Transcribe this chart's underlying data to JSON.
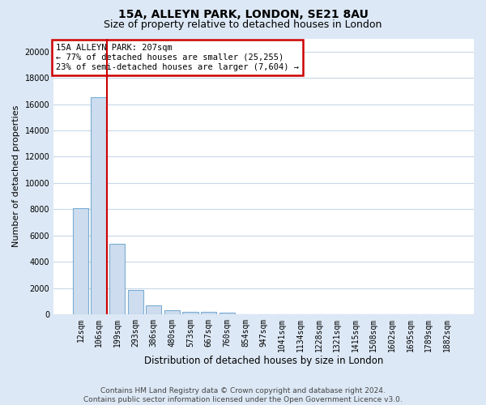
{
  "title": "15A, ALLEYN PARK, LONDON, SE21 8AU",
  "subtitle": "Size of property relative to detached houses in London",
  "xlabel": "Distribution of detached houses by size in London",
  "ylabel": "Number of detached properties",
  "categories": [
    "12sqm",
    "106sqm",
    "199sqm",
    "293sqm",
    "386sqm",
    "480sqm",
    "573sqm",
    "667sqm",
    "760sqm",
    "854sqm",
    "947sqm",
    "1041sqm",
    "1134sqm",
    "1228sqm",
    "1321sqm",
    "1415sqm",
    "1508sqm",
    "1602sqm",
    "1695sqm",
    "1789sqm",
    "1882sqm"
  ],
  "values": [
    8050,
    16500,
    5350,
    1850,
    680,
    320,
    200,
    170,
    130,
    0,
    0,
    0,
    0,
    0,
    0,
    0,
    0,
    0,
    0,
    0,
    0
  ],
  "bar_color": "#cddcee",
  "bar_edge_color": "#7aadd4",
  "property_line_bin": 1,
  "property_line_side": "right",
  "property_line_color": "#cc0000",
  "annotation_line1": "15A ALLEYN PARK: 207sqm",
  "annotation_line2": "← 77% of detached houses are smaller (25,255)",
  "annotation_line3": "23% of semi-detached houses are larger (7,604) →",
  "annotation_box_facecolor": "#ffffff",
  "annotation_box_edgecolor": "#cc0000",
  "ylim": [
    0,
    21000
  ],
  "yticks": [
    0,
    2000,
    4000,
    6000,
    8000,
    10000,
    12000,
    14000,
    16000,
    18000,
    20000
  ],
  "fig_bg_color": "#dce8f5",
  "axes_bg_color": "#ffffff",
  "grid_color": "#c8d8e8",
  "title_fontsize": 10,
  "subtitle_fontsize": 9,
  "xlabel_fontsize": 8.5,
  "ylabel_fontsize": 8,
  "tick_fontsize": 7,
  "annotation_fontsize": 7.5,
  "footer_fontsize": 6.5,
  "footer_line1": "Contains HM Land Registry data © Crown copyright and database right 2024.",
  "footer_line2": "Contains public sector information licensed under the Open Government Licence v3.0."
}
